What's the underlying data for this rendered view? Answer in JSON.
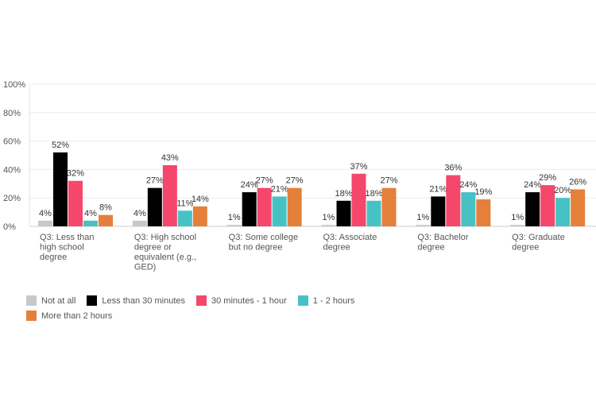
{
  "chart_data": {
    "type": "bar",
    "title": "",
    "xlabel": "",
    "ylabel": "",
    "ylim": [
      0,
      100
    ],
    "yticks": [
      "0%",
      "20%",
      "40%",
      "60%",
      "80%",
      "100%"
    ],
    "grid": true,
    "legend_position": "bottom-left",
    "categories": [
      [
        "Q3: Less than",
        "high school",
        "degree"
      ],
      [
        "Q3: High school",
        "degree or",
        "equivalent (e.g.,",
        "GED)"
      ],
      [
        "Q3: Some college",
        "but no degree"
      ],
      [
        "Q3: Associate",
        "degree"
      ],
      [
        "Q3: Bachelor",
        "degree"
      ],
      [
        "Q3: Graduate",
        "degree"
      ]
    ],
    "series": [
      {
        "name": "Not at all",
        "color": "#c8c8c8",
        "values": [
          4,
          4,
          1,
          1,
          1,
          1
        ]
      },
      {
        "name": "Less than 30 minutes",
        "color": "#000000",
        "values": [
          52,
          27,
          24,
          18,
          21,
          24
        ]
      },
      {
        "name": "30 minutes - 1 hour",
        "color": "#f4476b",
        "values": [
          32,
          43,
          27,
          37,
          36,
          29
        ]
      },
      {
        "name": "1 - 2 hours",
        "color": "#46c2c4",
        "values": [
          4,
          11,
          21,
          18,
          24,
          20
        ]
      },
      {
        "name": "More than 2 hours",
        "color": "#e5803a",
        "values": [
          8,
          14,
          27,
          27,
          19,
          26
        ]
      }
    ],
    "value_suffix": "%"
  }
}
